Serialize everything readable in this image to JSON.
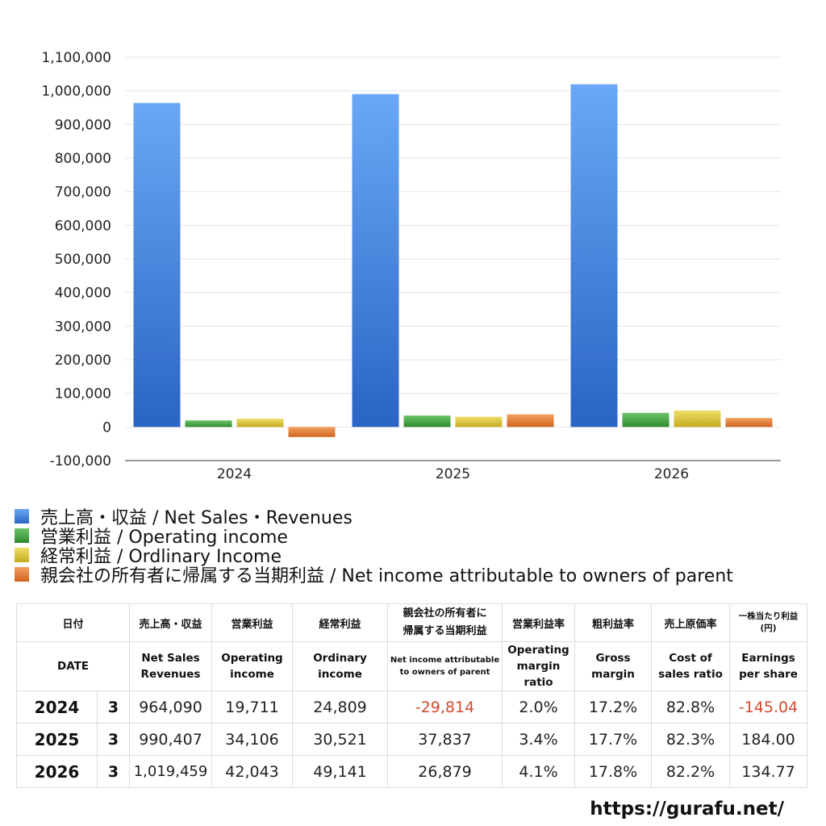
{
  "chart_data": {
    "type": "bar",
    "categories": [
      "2024",
      "2025",
      "2026"
    ],
    "series": [
      {
        "name": "売上高・収益 / Net Sales・Revenues",
        "values": [
          964090,
          990407,
          1019459
        ],
        "color": "#3a7be0"
      },
      {
        "name": "営業利益 / Operating income",
        "values": [
          19711,
          34106,
          42043
        ],
        "color": "#3e9a3c"
      },
      {
        "name": "経常利益 / Ordlinary Income",
        "values": [
          24809,
          30521,
          49141
        ],
        "color": "#d4c02e"
      },
      {
        "name": "親会社の所有者に帰属する当期利益 / Net income attributable to owners of parent",
        "values": [
          -29814,
          37837,
          26879
        ],
        "color": "#dd7328"
      }
    ],
    "ylim": [
      -100000,
      1100000
    ],
    "yticks": [
      "1,100,000",
      "1,000,000",
      "900,000",
      "800,000",
      "700,000",
      "600,000",
      "500,000",
      "400,000",
      "300,000",
      "200,000",
      "100,000",
      "0",
      "-100,000"
    ],
    "grid": true,
    "legend_placement": "bottom"
  },
  "table": {
    "header_jp": {
      "date": "日付",
      "sales": "売上高・収益",
      "op": "営業利益",
      "ord": "経常利益",
      "net_l1": "親会社の所有者に",
      "net_l2": "帰属する当期利益",
      "opm": "営業利益率",
      "gross": "粗利益率",
      "cost": "売上原価率",
      "eps_l1": "一株当たり利益",
      "eps_l2": "(円)"
    },
    "header_en": {
      "date": "DATE",
      "sales_l1": "Net Sales",
      "sales_l2": "Revenues",
      "op_l1": "Operating",
      "op_l2": "income",
      "ord_l1": "Ordinary",
      "ord_l2": "income",
      "net_l1": "Net income attributable",
      "net_l2": "to owners of parent",
      "opm_l1": "Operating",
      "opm_l2": "margin",
      "opm_l3": "ratio",
      "gross_l1": "Gross",
      "gross_l2": "margin",
      "cost_l1": "Cost of",
      "cost_l2": "sales ratio",
      "eps_l1": "Earnings",
      "eps_l2": "per share"
    },
    "rows": [
      {
        "year": "2024",
        "month": "3",
        "sales": "964,090",
        "op": "19,711",
        "ord": "24,809",
        "net": "-29,814",
        "opm": "2.0%",
        "gross": "17.2%",
        "cost": "82.8%",
        "eps": "-145.04"
      },
      {
        "year": "2025",
        "month": "3",
        "sales": "990,407",
        "op": "34,106",
        "ord": "30,521",
        "net": "37,837",
        "opm": "3.4%",
        "gross": "17.7%",
        "cost": "82.3%",
        "eps": "184.00"
      },
      {
        "year": "2026",
        "month": "3",
        "sales": "1,019,459",
        "op": "42,043",
        "ord": "49,141",
        "net": "26,879",
        "opm": "4.1%",
        "gross": "17.8%",
        "cost": "82.2%",
        "eps": "134.77"
      }
    ]
  },
  "footer": {
    "url": "https://gurafu.net/"
  }
}
